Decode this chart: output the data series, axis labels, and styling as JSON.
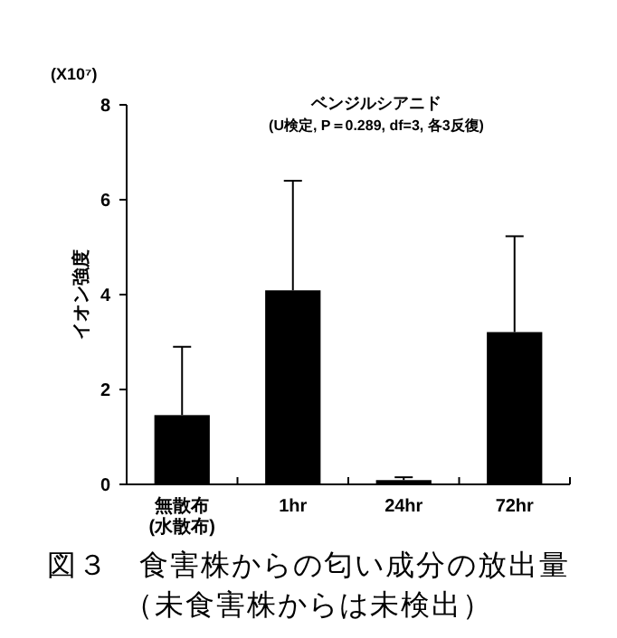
{
  "chart_data": {
    "type": "bar",
    "title": "図３　食害株からの匂い成分の放出量",
    "subtitle": "（未食害株からは未検出）",
    "ylabel": "イオン強度",
    "annotations": [
      "(X10⁷)",
      "ベンジルシアニド",
      "(U検定, P＝0.289, df=3, 各3反復)"
    ],
    "categories": [
      "無散布\n(水散布)",
      "1hr",
      "24hr",
      "72hr"
    ],
    "values": [
      1.46,
      4.09,
      0.09,
      3.21
    ],
    "errors": [
      [
        1.46,
        2.9
      ],
      [
        4.09,
        6.4
      ],
      [
        0.09,
        0.15
      ],
      [
        3.21,
        5.23
      ]
    ],
    "color": "#000000",
    "ylim": [
      0,
      8
    ],
    "yticks": [
      0,
      2,
      4,
      6,
      8
    ],
    "grid": false
  }
}
